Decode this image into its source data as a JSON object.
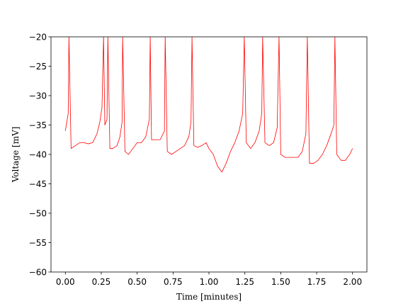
{
  "chart_data": {
    "type": "line",
    "x_label": "Time [minutes]",
    "y_label": "Voltage [mV]",
    "xlim": [
      -0.1,
      2.1
    ],
    "ylim": [
      -60,
      -20
    ],
    "xticks": [
      {
        "value": 0,
        "label": "0.00"
      },
      {
        "value": 0.25,
        "label": "0.25"
      },
      {
        "value": 0.5,
        "label": "0.50"
      },
      {
        "value": 0.75,
        "label": "0.75"
      },
      {
        "value": 1,
        "label": "1.00"
      },
      {
        "value": 1.25,
        "label": "1.25"
      },
      {
        "value": 1.5,
        "label": "1.50"
      },
      {
        "value": 1.75,
        "label": "1.75"
      },
      {
        "value": 2,
        "label": "2.00"
      }
    ],
    "yticks": [
      {
        "value": -20,
        "label": "−20"
      },
      {
        "value": -25,
        "label": "−25"
      },
      {
        "value": -30,
        "label": "−30"
      },
      {
        "value": -35,
        "label": "−35"
      },
      {
        "value": -40,
        "label": "−40"
      },
      {
        "value": -45,
        "label": "−45"
      },
      {
        "value": -50,
        "label": "−50"
      },
      {
        "value": -55,
        "label": "−55"
      },
      {
        "value": -60,
        "label": "−60"
      }
    ],
    "color": "#ff0000",
    "x": [
      0,
      0.01,
      0.02,
      0.025,
      0.04,
      0.07,
      0.1,
      0.13,
      0.16,
      0.19,
      0.22,
      0.24,
      0.255,
      0.266,
      0.275,
      0.29,
      0.296,
      0.31,
      0.33,
      0.36,
      0.38,
      0.395,
      0.399,
      0.415,
      0.44,
      0.47,
      0.5,
      0.53,
      0.56,
      0.585,
      0.591,
      0.6,
      0.63,
      0.66,
      0.69,
      0.695,
      0.71,
      0.74,
      0.77,
      0.8,
      0.83,
      0.86,
      0.875,
      0.882,
      0.895,
      0.92,
      0.95,
      0.98,
      1.0,
      1.03,
      1.06,
      1.09,
      1.12,
      1.15,
      1.18,
      1.21,
      1.235,
      1.246,
      1.26,
      1.29,
      1.32,
      1.35,
      1.368,
      1.374,
      1.39,
      1.42,
      1.45,
      1.475,
      1.488,
      1.5,
      1.53,
      1.56,
      1.59,
      1.62,
      1.65,
      1.675,
      1.685,
      1.7,
      1.73,
      1.76,
      1.79,
      1.82,
      1.85,
      1.87,
      1.877,
      1.89,
      1.92,
      1.95,
      1.98,
      2.0
    ],
    "values": [
      -36,
      -34.5,
      -33,
      -20,
      -39,
      -38.5,
      -38,
      -38,
      -38.2,
      -38,
      -36.5,
      -34.5,
      -32,
      -20,
      -35,
      -34,
      -20,
      -39,
      -39,
      -38.5,
      -37,
      -34.5,
      -20,
      -39.5,
      -40,
      -39,
      -38,
      -38,
      -37,
      -34,
      -20,
      -37.5,
      -37.5,
      -37.5,
      -36,
      -20,
      -39.5,
      -40,
      -39.5,
      -39,
      -38.5,
      -37,
      -34.5,
      -20,
      -38.5,
      -38.8,
      -38.5,
      -38,
      -39,
      -40,
      -42,
      -43,
      -41.5,
      -39.5,
      -38,
      -36,
      -33,
      -20,
      -38,
      -39,
      -38,
      -36,
      -33,
      -20,
      -38,
      -38.5,
      -38,
      -35.5,
      -20,
      -40,
      -40.5,
      -40.5,
      -40.5,
      -40.5,
      -39.5,
      -36.5,
      -20,
      -41.5,
      -41.5,
      -41,
      -40,
      -38.5,
      -36.5,
      -35,
      -20,
      -40,
      -41,
      -41,
      -40,
      -39
    ]
  }
}
